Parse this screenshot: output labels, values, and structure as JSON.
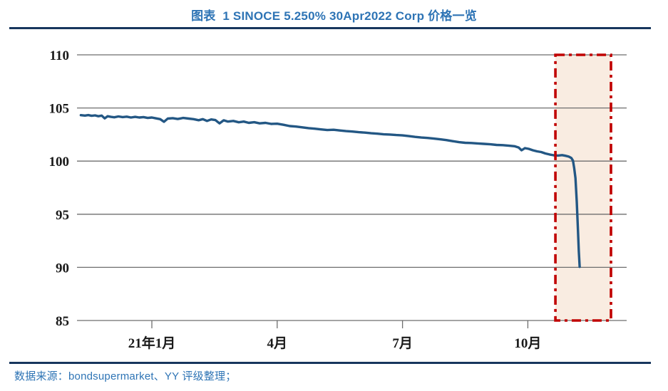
{
  "header": {
    "title": "图表  1 SINOCE 5.250% 30Apr2022 Corp 价格一览",
    "accent_color": "#2E74B5",
    "rule_color": "#17365D"
  },
  "footer": {
    "source": "数据来源：bondsupermarket、YY 评级整理；",
    "text_color": "#2E74B5"
  },
  "chart_data": {
    "type": "line",
    "title": "SINOCE 5.250% 30Apr2022 Corp 价格一览",
    "xlabel": "",
    "ylabel": "",
    "grid": true,
    "grid_color": "#6e6e6e",
    "legend_position": "none",
    "x_axis": {
      "unit": "month (0 = 2021-01, 3 = 2021-04, 6 = 2021-07, 9 = 2021-10)",
      "tick_labels": [
        "21年1月",
        "4月",
        "7月",
        "10月"
      ],
      "tick_months": [
        0,
        3,
        6,
        9
      ],
      "range_months": [
        -1.79,
        11.36
      ]
    },
    "y_axis": {
      "ticks": [
        110,
        105,
        100,
        95,
        90,
        85
      ],
      "range": [
        85,
        110
      ]
    },
    "series": [
      {
        "name": "SINOCE 5.250% 30Apr2022 Corp price",
        "color": "#235784",
        "points": [
          [
            -1.7,
            104.32
          ],
          [
            -1.6,
            104.28
          ],
          [
            -1.52,
            104.33
          ],
          [
            -1.44,
            104.26
          ],
          [
            -1.36,
            104.3
          ],
          [
            -1.28,
            104.22
          ],
          [
            -1.2,
            104.28
          ],
          [
            -1.13,
            104.02
          ],
          [
            -1.06,
            104.22
          ],
          [
            -0.98,
            104.16
          ],
          [
            -0.9,
            104.12
          ],
          [
            -0.8,
            104.2
          ],
          [
            -0.7,
            104.14
          ],
          [
            -0.6,
            104.18
          ],
          [
            -0.5,
            104.1
          ],
          [
            -0.4,
            104.16
          ],
          [
            -0.3,
            104.1
          ],
          [
            -0.2,
            104.14
          ],
          [
            -0.1,
            104.06
          ],
          [
            0.0,
            104.1
          ],
          [
            0.1,
            104.02
          ],
          [
            0.2,
            103.95
          ],
          [
            0.29,
            103.7
          ],
          [
            0.38,
            104.0
          ],
          [
            0.5,
            104.04
          ],
          [
            0.62,
            103.96
          ],
          [
            0.75,
            104.06
          ],
          [
            0.88,
            104.0
          ],
          [
            1.0,
            103.95
          ],
          [
            1.12,
            103.85
          ],
          [
            1.22,
            103.95
          ],
          [
            1.32,
            103.78
          ],
          [
            1.42,
            103.92
          ],
          [
            1.52,
            103.86
          ],
          [
            1.62,
            103.55
          ],
          [
            1.72,
            103.84
          ],
          [
            1.82,
            103.72
          ],
          [
            1.95,
            103.78
          ],
          [
            2.08,
            103.65
          ],
          [
            2.2,
            103.72
          ],
          [
            2.32,
            103.6
          ],
          [
            2.45,
            103.66
          ],
          [
            2.58,
            103.55
          ],
          [
            2.72,
            103.6
          ],
          [
            2.86,
            103.5
          ],
          [
            3.0,
            103.52
          ],
          [
            3.15,
            103.42
          ],
          [
            3.3,
            103.3
          ],
          [
            3.45,
            103.25
          ],
          [
            3.6,
            103.18
          ],
          [
            3.75,
            103.1
          ],
          [
            3.9,
            103.05
          ],
          [
            4.05,
            102.98
          ],
          [
            4.2,
            102.92
          ],
          [
            4.35,
            102.95
          ],
          [
            4.5,
            102.88
          ],
          [
            4.65,
            102.82
          ],
          [
            4.8,
            102.78
          ],
          [
            4.95,
            102.72
          ],
          [
            5.1,
            102.68
          ],
          [
            5.25,
            102.62
          ],
          [
            5.4,
            102.58
          ],
          [
            5.55,
            102.52
          ],
          [
            5.7,
            102.5
          ],
          [
            5.85,
            102.45
          ],
          [
            6.0,
            102.42
          ],
          [
            6.15,
            102.35
          ],
          [
            6.3,
            102.28
          ],
          [
            6.45,
            102.22
          ],
          [
            6.6,
            102.18
          ],
          [
            6.75,
            102.12
          ],
          [
            6.9,
            102.05
          ],
          [
            7.05,
            101.98
          ],
          [
            7.2,
            101.88
          ],
          [
            7.35,
            101.78
          ],
          [
            7.5,
            101.72
          ],
          [
            7.65,
            101.7
          ],
          [
            7.8,
            101.66
          ],
          [
            7.95,
            101.62
          ],
          [
            8.1,
            101.58
          ],
          [
            8.25,
            101.52
          ],
          [
            8.4,
            101.5
          ],
          [
            8.55,
            101.45
          ],
          [
            8.68,
            101.4
          ],
          [
            8.78,
            101.28
          ],
          [
            8.85,
            101.02
          ],
          [
            8.93,
            101.22
          ],
          [
            9.02,
            101.15
          ],
          [
            9.12,
            101.02
          ],
          [
            9.22,
            100.92
          ],
          [
            9.32,
            100.85
          ],
          [
            9.42,
            100.72
          ],
          [
            9.52,
            100.62
          ],
          [
            9.62,
            100.55
          ],
          [
            9.72,
            100.52
          ],
          [
            9.82,
            100.56
          ],
          [
            9.9,
            100.5
          ],
          [
            9.98,
            100.42
          ],
          [
            10.04,
            100.3
          ],
          [
            10.08,
            100.05
          ],
          [
            10.11,
            99.35
          ],
          [
            10.14,
            98.4
          ],
          [
            10.17,
            96.2
          ],
          [
            10.2,
            93.5
          ],
          [
            10.22,
            91.5
          ],
          [
            10.24,
            90.05
          ]
        ]
      }
    ],
    "highlight_region": {
      "x_months": [
        9.66,
        10.99
      ],
      "y_range": [
        85,
        110
      ],
      "fill": "#F9ECE1",
      "border_color": "#C00000",
      "border_style": "dash-dot"
    }
  }
}
